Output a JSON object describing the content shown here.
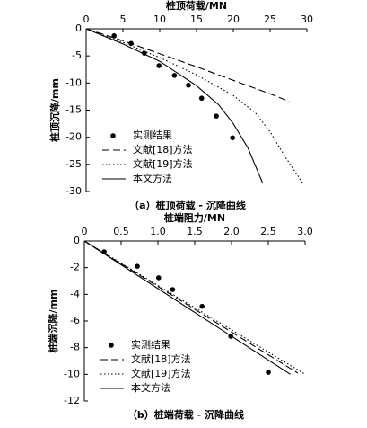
{
  "chart_data": [
    {
      "type": "line",
      "title": "（a）桩顶荷载 - 沉降曲线",
      "xlabel": "桩顶荷载/MN",
      "ylabel": "桩顶沉降/mm",
      "xlim": [
        0,
        30
      ],
      "ylim": [
        0,
        -30
      ],
      "xticks": [
        0,
        5,
        10,
        15,
        20,
        25,
        30
      ],
      "yticks": [
        0,
        -5,
        -10,
        -15,
        -20,
        -25,
        -30
      ],
      "legend": "lower left",
      "series": [
        {
          "name": "实测结果",
          "style": "marker",
          "color": "#000000",
          "x": [
            3.8,
            6.1,
            7.9,
            9.9,
            12,
            13.9,
            15.7,
            17.7,
            19.9
          ],
          "values": [
            -1.3,
            -2.7,
            -4.5,
            -6.8,
            -8.6,
            -10.4,
            -12.8,
            -16.1,
            -20.1
          ]
        },
        {
          "name": "文献[18]方法",
          "style": "dashed",
          "color": "#000000",
          "x": [
            0,
            5,
            10,
            15,
            20,
            25,
            27.6
          ],
          "values": [
            0,
            -2.2,
            -4.6,
            -7,
            -9.5,
            -12,
            -13.4
          ]
        },
        {
          "name": "文献[19]方法",
          "style": "dotted",
          "color": "#000000",
          "x": [
            0,
            5,
            10,
            15,
            20,
            23,
            25,
            27,
            29.5
          ],
          "values": [
            0,
            -2.5,
            -5.3,
            -8.5,
            -12.3,
            -15.5,
            -19,
            -23.5,
            -28.6
          ]
        },
        {
          "name": "本文方法",
          "style": "solid",
          "color": "#000000",
          "x": [
            0,
            5,
            10,
            15,
            18,
            20,
            22,
            24
          ],
          "values": [
            0,
            -2.8,
            -6,
            -10.5,
            -14,
            -17.5,
            -22,
            -28.5
          ]
        }
      ]
    },
    {
      "type": "line",
      "title": "（b）桩端荷载 - 沉降曲线",
      "xlabel": "桩端阻力/MN",
      "ylabel": "桩端沉降/mm",
      "xlim": [
        0,
        3
      ],
      "ylim": [
        0,
        -12
      ],
      "xticks": [
        0,
        0.5,
        {
          "value": 1,
          "label": "1.0"
        },
        1.5,
        {
          "value": 2,
          "label": "2.0"
        },
        2.5,
        {
          "value": 3,
          "label": "3.0"
        }
      ],
      "yticks": [
        0,
        -2,
        -4,
        -6,
        -8,
        -10,
        -12
      ],
      "legend": "lower left",
      "series": [
        {
          "name": "实测结果",
          "style": "marker",
          "color": "#000000",
          "x": [
            0.27,
            0.72,
            1.01,
            1.2,
            1.6,
            1.99,
            2.5
          ],
          "values": [
            -0.81,
            -1.9,
            -2.76,
            -3.64,
            -4.9,
            -7.15,
            -9.85
          ]
        },
        {
          "name": "文献[18]方法",
          "style": "dashed",
          "color": "#000000",
          "x": [
            0,
            2.9
          ],
          "values": [
            0,
            -9.9
          ]
        },
        {
          "name": "文献[19]方法",
          "style": "dotted",
          "color": "#000000",
          "x": [
            0,
            3
          ],
          "values": [
            0,
            -10
          ]
        },
        {
          "name": "本文方法",
          "style": "solid",
          "color": "#000000",
          "x": [
            0,
            2.8
          ],
          "values": [
            0,
            -10
          ]
        }
      ]
    }
  ]
}
